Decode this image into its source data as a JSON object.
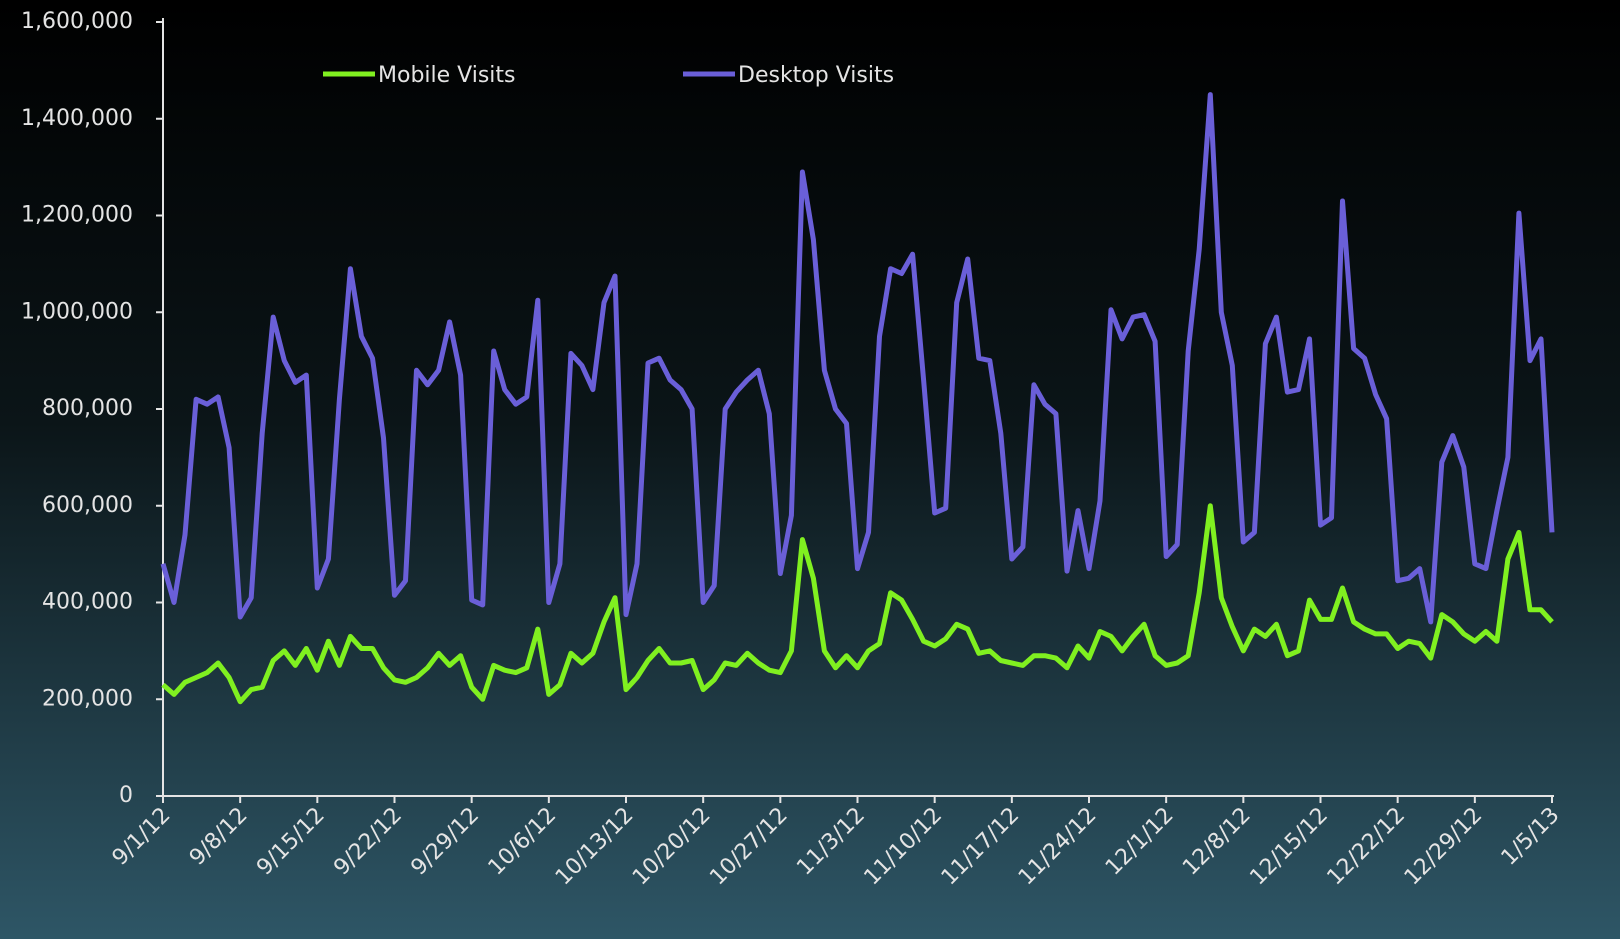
{
  "chart_data": {
    "type": "line",
    "categories": [
      "9/1/12",
      null,
      null,
      null,
      null,
      null,
      null,
      "9/8/12",
      null,
      null,
      null,
      null,
      null,
      null,
      "9/15/12",
      null,
      null,
      null,
      null,
      null,
      null,
      "9/22/12",
      null,
      null,
      null,
      null,
      null,
      null,
      "9/29/12",
      null,
      null,
      null,
      null,
      null,
      null,
      "10/6/12",
      null,
      null,
      null,
      null,
      null,
      null,
      "10/13/12",
      null,
      null,
      null,
      null,
      null,
      null,
      "10/20/12",
      null,
      null,
      null,
      null,
      null,
      null,
      "10/27/12",
      null,
      null,
      null,
      null,
      null,
      null,
      "11/3/12",
      null,
      null,
      null,
      null,
      null,
      null,
      "11/10/12",
      null,
      null,
      null,
      null,
      null,
      null,
      "11/17/12",
      null,
      null,
      null,
      null,
      null,
      null,
      "11/24/12",
      null,
      null,
      null,
      null,
      null,
      null,
      "12/1/12",
      null,
      null,
      null,
      null,
      null,
      null,
      "12/8/12",
      null,
      null,
      null,
      null,
      null,
      null,
      "12/15/12",
      null,
      null,
      null,
      null,
      null,
      null,
      "12/22/12",
      null,
      null,
      null,
      null,
      null,
      null,
      "12/29/12",
      null,
      null,
      null,
      null,
      null,
      null,
      "1/5/13"
    ],
    "series": [
      {
        "name": "Mobile Visits",
        "color": "#80f020",
        "values": [
          230000,
          210000,
          235000,
          245000,
          255000,
          275000,
          245000,
          195000,
          220000,
          225000,
          280000,
          300000,
          270000,
          305000,
          260000,
          320000,
          270000,
          330000,
          305000,
          305000,
          265000,
          240000,
          235000,
          245000,
          265000,
          295000,
          270000,
          290000,
          225000,
          200000,
          270000,
          260000,
          255000,
          265000,
          345000,
          210000,
          230000,
          295000,
          275000,
          295000,
          360000,
          410000,
          220000,
          245000,
          280000,
          305000,
          275000,
          275000,
          280000,
          220000,
          240000,
          275000,
          270000,
          295000,
          275000,
          260000,
          255000,
          300000,
          530000,
          450000,
          300000,
          265000,
          290000,
          265000,
          300000,
          315000,
          420000,
          405000,
          365000,
          320000,
          310000,
          325000,
          355000,
          345000,
          295000,
          300000,
          280000,
          275000,
          270000,
          290000,
          290000,
          285000,
          265000,
          310000,
          285000,
          340000,
          330000,
          300000,
          330000,
          355000,
          290000,
          270000,
          275000,
          290000,
          420000,
          600000,
          410000,
          350000,
          300000,
          345000,
          330000,
          355000,
          290000,
          300000,
          405000,
          365000,
          365000,
          430000,
          360000,
          345000,
          335000,
          335000,
          305000,
          320000,
          315000,
          285000,
          375000,
          360000,
          335000,
          320000,
          340000,
          320000,
          490000,
          545000,
          385000,
          385000,
          360000
        ]
      },
      {
        "name": "Desktop Visits",
        "color": "#6a5fd8",
        "values": [
          480000,
          400000,
          540000,
          820000,
          810000,
          825000,
          720000,
          370000,
          410000,
          750000,
          990000,
          900000,
          855000,
          870000,
          430000,
          490000,
          820000,
          1090000,
          950000,
          905000,
          740000,
          415000,
          445000,
          880000,
          850000,
          880000,
          980000,
          870000,
          405000,
          395000,
          920000,
          840000,
          810000,
          825000,
          1025000,
          400000,
          480000,
          915000,
          890000,
          840000,
          1020000,
          1075000,
          375000,
          480000,
          895000,
          905000,
          860000,
          840000,
          800000,
          400000,
          435000,
          800000,
          835000,
          860000,
          880000,
          790000,
          460000,
          580000,
          1290000,
          1150000,
          880000,
          800000,
          770000,
          470000,
          545000,
          950000,
          1090000,
          1080000,
          1120000,
          860000,
          585000,
          595000,
          1020000,
          1110000,
          905000,
          900000,
          750000,
          490000,
          515000,
          850000,
          810000,
          790000,
          465000,
          590000,
          470000,
          610000,
          1005000,
          945000,
          990000,
          995000,
          940000,
          495000,
          520000,
          920000,
          1130000,
          1450000,
          1000000,
          890000,
          525000,
          545000,
          935000,
          990000,
          835000,
          840000,
          945000,
          560000,
          575000,
          1230000,
          925000,
          905000,
          830000,
          780000,
          445000,
          450000,
          470000,
          360000,
          690000,
          745000,
          680000,
          480000,
          470000,
          590000,
          700000,
          1205000,
          900000,
          945000,
          545000
        ]
      }
    ],
    "ylim": [
      0,
      1600000
    ],
    "yticks": [
      0,
      {
        "value": 200000,
        "label": "200,000"
      },
      {
        "value": 400000,
        "label": "400,000"
      },
      {
        "value": 600000,
        "label": "600,000"
      },
      {
        "value": 800000,
        "label": "800,000"
      },
      {
        "value": 1000000,
        "label": "1,000,000"
      },
      {
        "value": 1200000,
        "label": "1,200,000"
      },
      {
        "value": 1400000,
        "label": "1,400,000"
      },
      {
        "value": 1600000,
        "label": "1,600,000"
      }
    ],
    "legend": "top",
    "grid": false
  }
}
